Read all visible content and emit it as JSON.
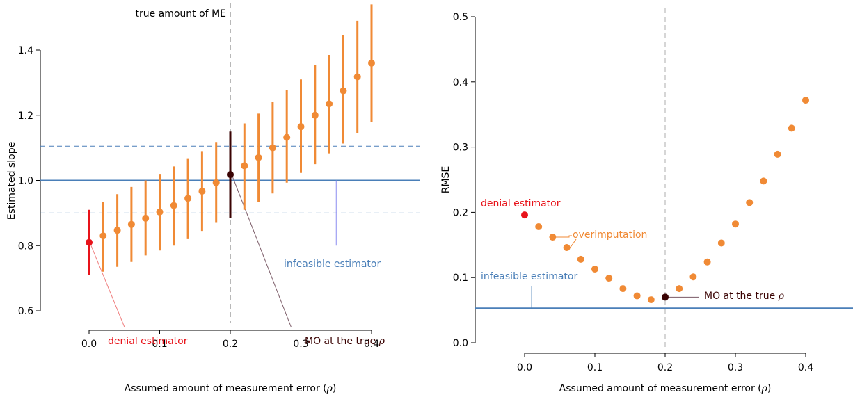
{
  "chart_data": [
    {
      "type": "scatter",
      "xlabel": "Assumed amount of measurement error (ρ)",
      "ylabel": "Estimated slope",
      "xlim": [
        -0.025,
        0.43
      ],
      "ylim": [
        0.57,
        1.5
      ],
      "xticks": [
        "0.0",
        "0.1",
        "0.2",
        "0.3",
        "0.4"
      ],
      "xtick_values": [
        0.0,
        0.1,
        0.2,
        0.3,
        0.4
      ],
      "yticks": [
        "0.6",
        "0.8",
        "1.0",
        "1.2",
        "1.4"
      ],
      "ytick_values": [
        0.6,
        0.8,
        1.0,
        1.2,
        1.4
      ],
      "reference_line": 1.0,
      "band_lines": [
        0.9,
        1.105
      ],
      "true_rho": 0.2,
      "true_rho_label": "true amount of ME",
      "estimates": [
        {
          "x": 0.0,
          "y": 0.81,
          "lo": 0.71,
          "hi": 0.91
        },
        {
          "x": 0.02,
          "y": 0.83,
          "lo": 0.72,
          "hi": 0.935
        },
        {
          "x": 0.04,
          "y": 0.847,
          "lo": 0.735,
          "hi": 0.958
        },
        {
          "x": 0.06,
          "y": 0.865,
          "lo": 0.75,
          "hi": 0.98
        },
        {
          "x": 0.08,
          "y": 0.884,
          "lo": 0.77,
          "hi": 1.0
        },
        {
          "x": 0.1,
          "y": 0.903,
          "lo": 0.785,
          "hi": 1.02
        },
        {
          "x": 0.12,
          "y": 0.923,
          "lo": 0.8,
          "hi": 1.043
        },
        {
          "x": 0.14,
          "y": 0.945,
          "lo": 0.82,
          "hi": 1.068
        },
        {
          "x": 0.16,
          "y": 0.967,
          "lo": 0.845,
          "hi": 1.09
        },
        {
          "x": 0.18,
          "y": 0.993,
          "lo": 0.87,
          "hi": 1.118
        },
        {
          "x": 0.2,
          "y": 1.018,
          "lo": 0.885,
          "hi": 1.15
        },
        {
          "x": 0.22,
          "y": 1.045,
          "lo": 0.91,
          "hi": 1.175
        },
        {
          "x": 0.24,
          "y": 1.07,
          "lo": 0.935,
          "hi": 1.205
        },
        {
          "x": 0.26,
          "y": 1.1,
          "lo": 0.96,
          "hi": 1.242
        },
        {
          "x": 0.28,
          "y": 1.132,
          "lo": 0.993,
          "hi": 1.278
        },
        {
          "x": 0.3,
          "y": 1.165,
          "lo": 1.023,
          "hi": 1.31
        },
        {
          "x": 0.32,
          "y": 1.2,
          "lo": 1.05,
          "hi": 1.353
        },
        {
          "x": 0.34,
          "y": 1.235,
          "lo": 1.083,
          "hi": 1.385
        },
        {
          "x": 0.36,
          "y": 1.275,
          "lo": 1.113,
          "hi": 1.445
        },
        {
          "x": 0.38,
          "y": 1.318,
          "lo": 1.145,
          "hi": 1.49
        },
        {
          "x": 0.4,
          "y": 1.36,
          "lo": 1.18,
          "hi": 1.54
        }
      ],
      "annotations": {
        "denial": "denial estimator",
        "mo_true": "MO at the true ρ",
        "infeasible": "infeasible estimator"
      },
      "colors": {
        "orange": "#f08a35",
        "denial": "#e8131a",
        "mo_true": "#3a0303",
        "infeasible": "#4a7fb8",
        "mo_annotation": "#6b1f2a",
        "true_line": "#888888"
      }
    },
    {
      "type": "scatter",
      "xlabel": "Assumed amount of measurement error (ρ)",
      "ylabel": "RMSE",
      "xlim": [
        -0.07,
        0.43
      ],
      "ylim": [
        -0.005,
        0.51
      ],
      "xticks": [
        "0.0",
        "0.1",
        "0.2",
        "0.3",
        "0.4"
      ],
      "xtick_values": [
        0.0,
        0.1,
        0.2,
        0.3,
        0.4
      ],
      "yticks": [
        "0.0",
        "0.1",
        "0.2",
        "0.3",
        "0.4",
        "0.5"
      ],
      "ytick_values": [
        0.0,
        0.1,
        0.2,
        0.3,
        0.4,
        0.5
      ],
      "reference_line": 0.053,
      "true_rho": 0.2,
      "points": [
        {
          "x": 0.0,
          "y": 0.196
        },
        {
          "x": 0.02,
          "y": 0.178
        },
        {
          "x": 0.04,
          "y": 0.162
        },
        {
          "x": 0.06,
          "y": 0.146
        },
        {
          "x": 0.08,
          "y": 0.128
        },
        {
          "x": 0.1,
          "y": 0.113
        },
        {
          "x": 0.12,
          "y": 0.099
        },
        {
          "x": 0.14,
          "y": 0.083
        },
        {
          "x": 0.16,
          "y": 0.072
        },
        {
          "x": 0.18,
          "y": 0.066
        },
        {
          "x": 0.2,
          "y": 0.07
        },
        {
          "x": 0.22,
          "y": 0.083
        },
        {
          "x": 0.24,
          "y": 0.101
        },
        {
          "x": 0.26,
          "y": 0.124
        },
        {
          "x": 0.28,
          "y": 0.153
        },
        {
          "x": 0.3,
          "y": 0.182
        },
        {
          "x": 0.32,
          "y": 0.215
        },
        {
          "x": 0.34,
          "y": 0.248
        },
        {
          "x": 0.36,
          "y": 0.289
        },
        {
          "x": 0.38,
          "y": 0.329
        },
        {
          "x": 0.4,
          "y": 0.372
        }
      ],
      "annotations": {
        "denial": "denial estimator",
        "overimputation": "overimputation",
        "infeasible": "infeasible estimator",
        "mo_true": "MO at the true ρ"
      },
      "colors": {
        "orange": "#f08a35",
        "denial": "#e8131a",
        "mo_true": "#3a0303",
        "infeasible": "#4a7fb8",
        "mo_annotation": "#6b1f2a",
        "true_line": "#bbbbbb"
      }
    }
  ]
}
